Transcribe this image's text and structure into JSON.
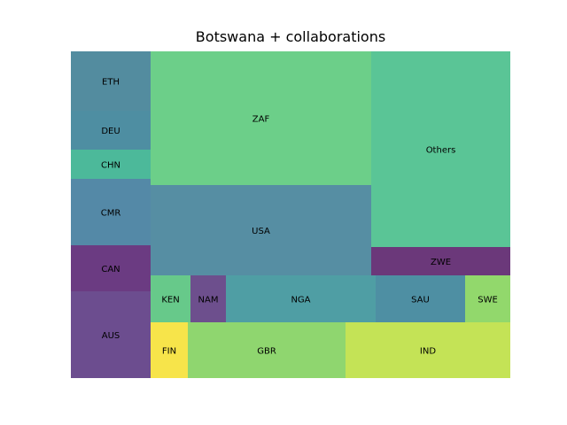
{
  "chart_data": {
    "type": "treemap",
    "title": "Botswana + collaborations",
    "cells": [
      {
        "label": "AUS",
        "value": 44,
        "color": "#6c4d8f"
      },
      {
        "label": "CAN",
        "value": 24,
        "color": "#6b3b82"
      },
      {
        "label": "CMR",
        "value": 34,
        "color": "#5489a7"
      },
      {
        "label": "CHN",
        "value": 15,
        "color": "#4cb99a"
      },
      {
        "label": "DEU",
        "value": 19,
        "color": "#4e8ea2"
      },
      {
        "label": "ETH",
        "value": 30,
        "color": "#538c9f"
      },
      {
        "label": "FIN",
        "value": 14,
        "color": "#f7e44a"
      },
      {
        "label": "GBR",
        "value": 58,
        "color": "#8fd66f"
      },
      {
        "label": "IND",
        "value": 60,
        "color": "#c4e356"
      },
      {
        "label": "KEN",
        "value": 14,
        "color": "#67c98a"
      },
      {
        "label": "NAM",
        "value": 12,
        "color": "#6d4f8d"
      },
      {
        "label": "NGA",
        "value": 52,
        "color": "#4f9ea4"
      },
      {
        "label": "SAU",
        "value": 31,
        "color": "#4e8fa3"
      },
      {
        "label": "SWE",
        "value": 15,
        "color": "#92d86c"
      },
      {
        "label": "USA",
        "value": 128,
        "color": "#568ea3"
      },
      {
        "label": "ZAF",
        "value": 188,
        "color": "#6ccf89"
      },
      {
        "label": "ZWE",
        "value": 25,
        "color": "#6b387a"
      },
      {
        "label": "Others",
        "value": 174,
        "color": "#5ac596"
      }
    ]
  }
}
